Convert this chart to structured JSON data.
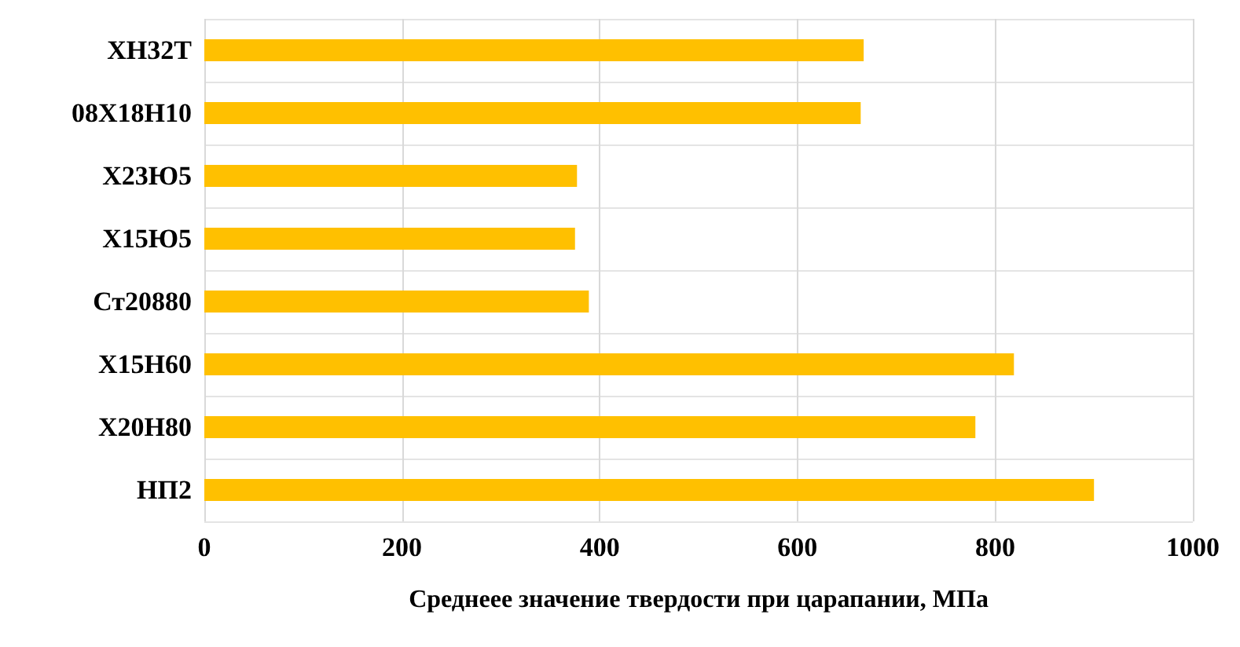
{
  "chart_data": {
    "type": "bar",
    "orientation": "horizontal",
    "xlabel": "Среднеее значение твердости при царапании, МПа",
    "categories": [
      "ХН32Т",
      "08Х18Н10",
      "Х23Ю5",
      "Х15Ю5",
      "Ст20880",
      "Х15Н60",
      "Х20Н80",
      "НП2"
    ],
    "values": [
      667,
      664,
      377,
      375,
      389,
      819,
      780,
      900
    ],
    "color": "#ffc000",
    "xlim": [
      0,
      1000
    ],
    "xticks": [
      0,
      200,
      400,
      600,
      800,
      1000
    ],
    "grid": true
  }
}
